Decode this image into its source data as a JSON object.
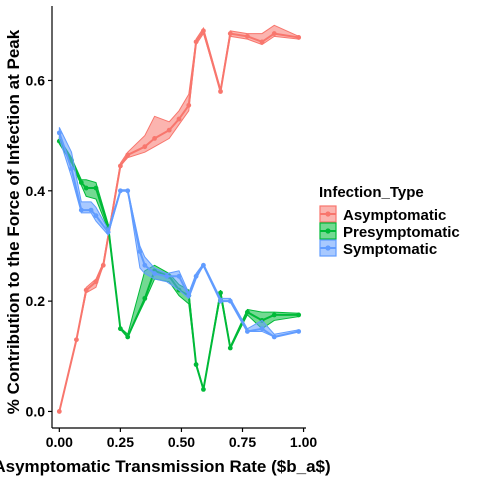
{
  "chart_data": {
    "type": "line",
    "xlabel": "Asymptomatic  Transmission Rate ($b_a$)",
    "ylabel": "% Contribution to the Force of Infection at Peak",
    "xlim": [
      -0.03,
      1.01
    ],
    "ylim": [
      -0.03,
      0.735
    ],
    "x_ticks": [
      "0.00",
      "0.25",
      "0.50",
      "0.75",
      "1.00"
    ],
    "x_tick_values": [
      0,
      0.25,
      0.5,
      0.75,
      1.0
    ],
    "y_ticks": [
      "0.0",
      "0.2",
      "0.4",
      "0.6"
    ],
    "y_tick_values": [
      0,
      0.2,
      0.4,
      0.6
    ],
    "legend": {
      "title": "Infection_Type",
      "placement": "right"
    },
    "series": [
      {
        "name": "Asymptomatic",
        "color": "#F8766D",
        "x": [
          0,
          0.07,
          0.11,
          0.15,
          0.18,
          0.25,
          0.28,
          0.35,
          0.39,
          0.45,
          0.49,
          0.53,
          0.56,
          0.59,
          0.66,
          0.7,
          0.77,
          0.83,
          0.88,
          0.98
        ],
        "y": [
          0,
          0.13,
          0.22,
          0.235,
          0.265,
          0.445,
          0.465,
          0.48,
          0.495,
          0.51,
          0.53,
          0.555,
          0.67,
          0.69,
          0.58,
          0.685,
          0.68,
          0.67,
          0.685,
          0.678
        ],
        "lower": [
          0,
          0.13,
          0.215,
          0.225,
          0.265,
          0.445,
          0.46,
          0.47,
          0.48,
          0.495,
          0.52,
          0.545,
          0.665,
          0.685,
          0.58,
          0.68,
          0.675,
          0.665,
          0.68,
          0.675
        ],
        "upper": [
          0,
          0.13,
          0.225,
          0.24,
          0.27,
          0.45,
          0.47,
          0.5,
          0.535,
          0.525,
          0.545,
          0.575,
          0.675,
          0.695,
          0.585,
          0.69,
          0.685,
          0.685,
          0.7,
          0.68
        ]
      },
      {
        "name": "Presymptomatic",
        "color": "#00BA38",
        "x": [
          0,
          0.05,
          0.09,
          0.11,
          0.15,
          0.2,
          0.25,
          0.28,
          0.35,
          0.39,
          0.45,
          0.49,
          0.53,
          0.56,
          0.59,
          0.66,
          0.7,
          0.77,
          0.83,
          0.88,
          0.98
        ],
        "y": [
          0.49,
          0.455,
          0.415,
          0.405,
          0.405,
          0.335,
          0.15,
          0.135,
          0.205,
          0.255,
          0.245,
          0.22,
          0.21,
          0.085,
          0.04,
          0.215,
          0.115,
          0.18,
          0.165,
          0.175,
          0.175
        ],
        "lower": [
          0.485,
          0.45,
          0.41,
          0.39,
          0.385,
          0.33,
          0.15,
          0.135,
          0.2,
          0.24,
          0.235,
          0.21,
          0.195,
          0.085,
          0.04,
          0.21,
          0.115,
          0.175,
          0.15,
          0.165,
          0.172
        ],
        "upper": [
          0.495,
          0.46,
          0.42,
          0.42,
          0.415,
          0.34,
          0.152,
          0.14,
          0.255,
          0.265,
          0.25,
          0.23,
          0.22,
          0.088,
          0.042,
          0.22,
          0.118,
          0.185,
          0.18,
          0.18,
          0.178
        ]
      },
      {
        "name": "Symptomatic",
        "color": "#619CFF",
        "x": [
          0,
          0.05,
          0.09,
          0.13,
          0.15,
          0.2,
          0.25,
          0.28,
          0.33,
          0.35,
          0.39,
          0.44,
          0.49,
          0.53,
          0.56,
          0.59,
          0.66,
          0.7,
          0.77,
          0.83,
          0.88,
          0.98
        ],
        "y": [
          0.505,
          0.44,
          0.365,
          0.365,
          0.355,
          0.325,
          0.4,
          0.4,
          0.29,
          0.265,
          0.25,
          0.245,
          0.245,
          0.21,
          0.245,
          0.265,
          0.2,
          0.2,
          0.145,
          0.15,
          0.135,
          0.145
        ],
        "lower": [
          0.495,
          0.425,
          0.36,
          0.36,
          0.345,
          0.32,
          0.4,
          0.4,
          0.26,
          0.25,
          0.24,
          0.235,
          0.22,
          0.205,
          0.24,
          0.265,
          0.2,
          0.2,
          0.145,
          0.145,
          0.135,
          0.145
        ],
        "upper": [
          0.515,
          0.47,
          0.38,
          0.38,
          0.37,
          0.33,
          0.402,
          0.402,
          0.3,
          0.28,
          0.26,
          0.25,
          0.255,
          0.215,
          0.25,
          0.268,
          0.205,
          0.205,
          0.15,
          0.165,
          0.14,
          0.148
        ]
      }
    ]
  }
}
